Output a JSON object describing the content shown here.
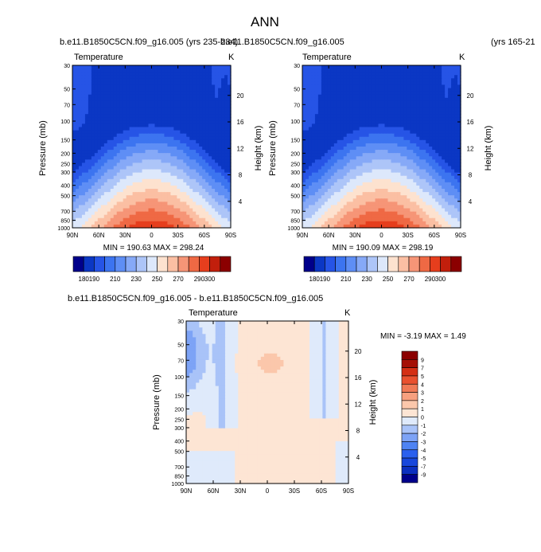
{
  "figure": {
    "title": "ANN"
  },
  "chart_data": [
    {
      "type": "heatmap",
      "case": "b.e11.B1850C5CN.f09_g16.005 (yrs 235-284)",
      "variable": "Temperature",
      "units": "K",
      "xlabel": "",
      "ylabel": "Pressure (mb)",
      "ylabel_right": "Height (km)",
      "x_ticks": [
        "90N",
        "60N",
        "30N",
        "0",
        "30S",
        "60S",
        "90S"
      ],
      "y_ticks": [
        30,
        50,
        70,
        100,
        150,
        200,
        250,
        300,
        400,
        500,
        700,
        850,
        1000
      ],
      "y_ticks_right": [
        4,
        8,
        12,
        16,
        20
      ],
      "y_scale": "log",
      "stats": "MIN = 190.63  MAX = 298.24",
      "min": 190.63,
      "max": 298.24,
      "colorbar": {
        "orientation": "horizontal",
        "levels": [
          180,
          190,
          200,
          210,
          220,
          230,
          240,
          250,
          260,
          270,
          280,
          290,
          300
        ],
        "labels": [
          "180",
          "190",
          "210",
          "230",
          "250",
          "270",
          "290",
          "300"
        ],
        "colors": [
          "#00008b",
          "#0b37c4",
          "#2654e6",
          "#3c74f0",
          "#5e8ef5",
          "#86a9f7",
          "#adc5f8",
          "#dde8fb",
          "#fde2cf",
          "#fbbfa3",
          "#f69577",
          "#ef6944",
          "#e63e1d",
          "#c21f0c",
          "#8b0000"
        ]
      }
    },
    {
      "type": "heatmap",
      "case": "b.e11.B1850C5CN.f09_g16.005",
      "case_years": "(yrs 165-21",
      "variable": "Temperature",
      "units": "K",
      "xlabel": "",
      "ylabel": "Pressure (mb)",
      "ylabel_right": "Height (km)",
      "x_ticks": [
        "90N",
        "60N",
        "30N",
        "0",
        "30S",
        "60S",
        "90S"
      ],
      "y_ticks": [
        30,
        50,
        70,
        100,
        150,
        200,
        250,
        300,
        400,
        500,
        700,
        850,
        1000
      ],
      "y_ticks_right": [
        4,
        8,
        12,
        16,
        20
      ],
      "y_scale": "log",
      "stats": "MIN = 190.09  MAX = 298.19",
      "min": 190.09,
      "max": 298.19,
      "colorbar": {
        "orientation": "horizontal",
        "levels": [
          180,
          190,
          200,
          210,
          220,
          230,
          240,
          250,
          260,
          270,
          280,
          290,
          300
        ],
        "labels": [
          "180",
          "190",
          "210",
          "230",
          "250",
          "270",
          "290",
          "300"
        ],
        "colors": [
          "#00008b",
          "#0b37c4",
          "#2654e6",
          "#3c74f0",
          "#5e8ef5",
          "#86a9f7",
          "#adc5f8",
          "#dde8fb",
          "#fde2cf",
          "#fbbfa3",
          "#f69577",
          "#ef6944",
          "#e63e1d",
          "#c21f0c",
          "#8b0000"
        ]
      }
    },
    {
      "type": "heatmap",
      "title": "b.e11.B1850C5CN.f09_g16.005 - b.e11.B1850C5CN.f09_g16.005",
      "variable": "Temperature",
      "units": "K",
      "xlabel": "",
      "ylabel": "Pressure (mb)",
      "ylabel_right": "Height (km)",
      "x_ticks": [
        "90N",
        "60N",
        "30N",
        "0",
        "30S",
        "60S",
        "90S"
      ],
      "y_ticks": [
        30,
        50,
        70,
        100,
        150,
        200,
        250,
        300,
        400,
        500,
        700,
        850,
        1000
      ],
      "y_ticks_right": [
        4,
        8,
        12,
        16,
        20
      ],
      "y_scale": "log",
      "stats": "MIN = -3.19  MAX =  1.49",
      "min": -3.19,
      "max": 1.49,
      "colorbar": {
        "orientation": "vertical",
        "levels": [
          -9,
          -7,
          -5,
          -4,
          -3,
          -2,
          -1,
          0,
          1,
          2,
          3,
          4,
          5,
          7,
          9
        ],
        "labels": [
          "-9",
          "-7",
          "-5",
          "-4",
          "-3",
          "-2",
          "-1",
          "0",
          "1",
          "2",
          "3",
          "4",
          "5",
          "7",
          "9"
        ],
        "colors": [
          "#00008b",
          "#0b2fbf",
          "#1747dc",
          "#2a60ee",
          "#4e83f3",
          "#7da3f6",
          "#a9c3f8",
          "#dfeafb",
          "#fde5d4",
          "#fbc7ab",
          "#f7a07f",
          "#f07a56",
          "#e9512f",
          "#d42f14",
          "#a50f05",
          "#8b0000"
        ]
      }
    }
  ]
}
